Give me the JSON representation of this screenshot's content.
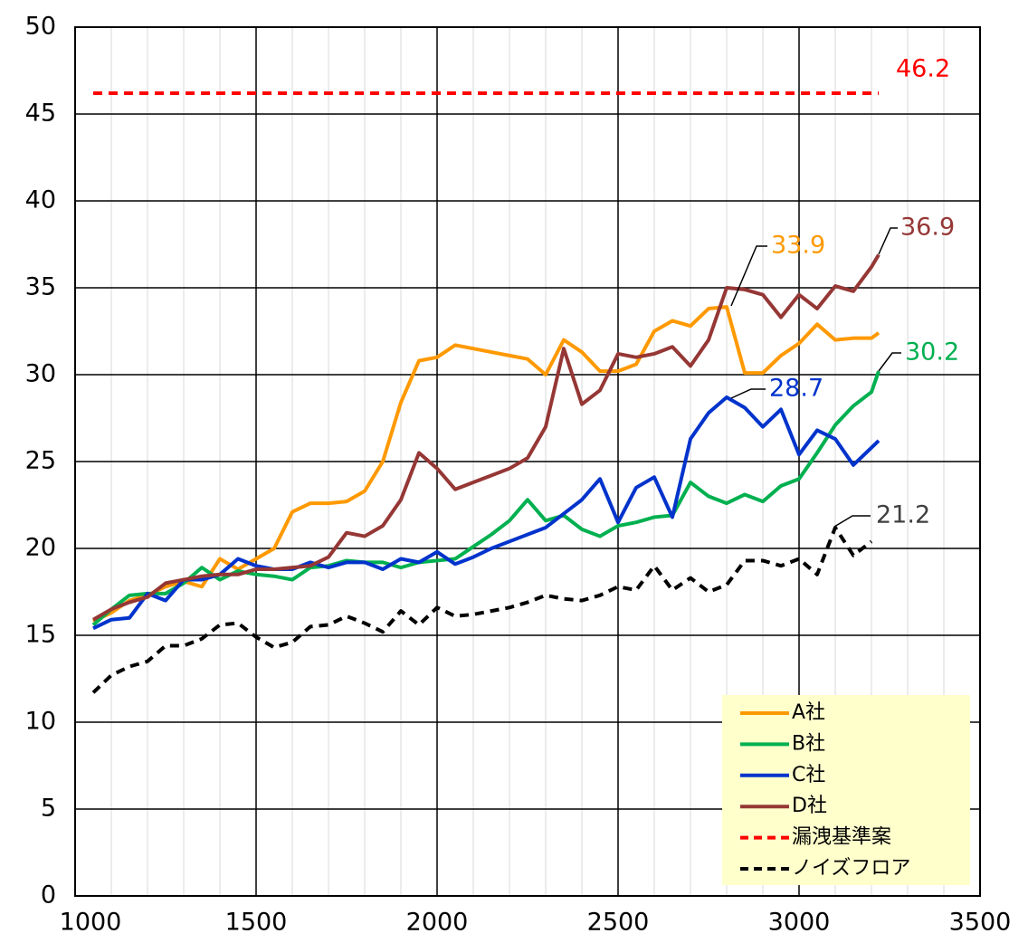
{
  "chart_data": {
    "type": "line",
    "x": [
      1050,
      1100,
      1150,
      1200,
      1250,
      1300,
      1350,
      1400,
      1450,
      1500,
      1550,
      1600,
      1650,
      1700,
      1750,
      1800,
      1850,
      1900,
      1950,
      2000,
      2050,
      2100,
      2150,
      2200,
      2250,
      2300,
      2350,
      2400,
      2450,
      2500,
      2550,
      2600,
      2650,
      2700,
      2750,
      2800,
      2850,
      2900,
      2950,
      3000,
      3050,
      3100,
      3150,
      3200,
      3220
    ],
    "series": [
      {
        "name": "A社",
        "color": "#ff9900",
        "line_style": "solid",
        "values": [
          15.8,
          16.3,
          17.0,
          17.3,
          17.8,
          18.1,
          17.8,
          19.4,
          18.8,
          19.4,
          20.0,
          22.1,
          22.6,
          22.6,
          22.7,
          23.3,
          25.0,
          28.4,
          30.8,
          31.0,
          31.7,
          31.5,
          31.3,
          31.1,
          30.9,
          30.0,
          32.0,
          31.3,
          30.2,
          30.2,
          30.6,
          32.5,
          33.1,
          32.8,
          33.8,
          33.9,
          30.1,
          30.1,
          31.1,
          31.8,
          32.9,
          32.0,
          32.1,
          32.1,
          32.4
        ]
      },
      {
        "name": "B社",
        "color": "#00b050",
        "line_style": "solid",
        "values": [
          15.6,
          16.5,
          17.3,
          17.4,
          17.4,
          18.0,
          18.9,
          18.2,
          18.7,
          18.5,
          18.4,
          18.2,
          18.9,
          19.0,
          19.3,
          19.2,
          19.2,
          18.9,
          19.2,
          19.3,
          19.4,
          20.1,
          20.8,
          21.6,
          22.8,
          21.6,
          21.9,
          21.1,
          20.7,
          21.3,
          21.5,
          21.8,
          21.9,
          23.8,
          23.0,
          22.6,
          23.1,
          22.7,
          23.6,
          24.0,
          25.5,
          27.1,
          28.2,
          29.0,
          30.2
        ]
      },
      {
        "name": "C社",
        "color": "#0033cc",
        "line_style": "solid",
        "values": [
          15.4,
          15.9,
          16.0,
          17.4,
          17.0,
          18.2,
          18.2,
          18.5,
          19.4,
          19.0,
          18.8,
          18.8,
          19.2,
          18.9,
          19.2,
          19.2,
          18.8,
          19.4,
          19.2,
          19.8,
          19.1,
          19.5,
          20.0,
          20.4,
          20.8,
          21.2,
          22.0,
          22.8,
          24.0,
          21.5,
          23.5,
          24.1,
          21.8,
          26.3,
          27.8,
          28.7,
          28.1,
          27.0,
          28.0,
          25.4,
          26.8,
          26.3,
          24.8,
          25.8,
          26.2
        ]
      },
      {
        "name": "D社",
        "color": "#953735",
        "line_style": "solid",
        "values": [
          15.9,
          16.5,
          16.9,
          17.2,
          18.0,
          18.2,
          18.4,
          18.5,
          18.5,
          18.8,
          18.8,
          18.9,
          19.0,
          19.5,
          20.9,
          20.7,
          21.3,
          22.8,
          25.5,
          24.6,
          23.4,
          23.8,
          24.2,
          24.6,
          25.2,
          27.0,
          31.5,
          28.3,
          29.1,
          31.2,
          31.0,
          31.2,
          31.6,
          30.5,
          32.0,
          35.0,
          34.9,
          34.6,
          33.3,
          34.6,
          33.8,
          35.1,
          34.8,
          36.2,
          36.9
        ]
      },
      {
        "name": "漏洩基準案",
        "color": "#ff0000",
        "line_style": "dashed",
        "values": [
          46.2,
          46.2,
          46.2,
          46.2,
          46.2,
          46.2,
          46.2,
          46.2,
          46.2,
          46.2,
          46.2,
          46.2,
          46.2,
          46.2,
          46.2,
          46.2,
          46.2,
          46.2,
          46.2,
          46.2,
          46.2,
          46.2,
          46.2,
          46.2,
          46.2,
          46.2,
          46.2,
          46.2,
          46.2,
          46.2,
          46.2,
          46.2,
          46.2,
          46.2,
          46.2,
          46.2,
          46.2,
          46.2,
          46.2,
          46.2,
          46.2,
          46.2,
          46.2,
          46.2,
          46.2
        ]
      },
      {
        "name": "ノイズフロア",
        "color": "#000000",
        "line_style": "dashed",
        "values": [
          11.7,
          12.7,
          13.2,
          13.5,
          14.4,
          14.4,
          14.8,
          15.6,
          15.7,
          14.9,
          14.3,
          14.6,
          15.5,
          15.6,
          16.1,
          15.7,
          15.2,
          16.4,
          15.6,
          16.6,
          16.1,
          16.2,
          16.4,
          16.6,
          16.9,
          17.3,
          17.1,
          17.0,
          17.3,
          17.8,
          17.6,
          19.0,
          17.6,
          18.3,
          17.5,
          17.9,
          19.3,
          19.3,
          19.0,
          19.4,
          18.5,
          21.2,
          19.6,
          20.4,
          null
        ]
      }
    ],
    "xlim": [
      1000,
      3500
    ],
    "xticks": [
      1000,
      1500,
      2000,
      2500,
      3000,
      3500
    ],
    "minor_xticks": [
      1100,
      1200,
      1300,
      1400,
      1600,
      1700,
      1800,
      1900,
      2100,
      2200,
      2300,
      2400,
      2600,
      2700,
      2800,
      2900,
      3100,
      3200,
      3300,
      3400
    ],
    "ylim": [
      0,
      50
    ],
    "yticks": [
      0,
      5,
      10,
      15,
      20,
      25,
      30,
      35,
      40,
      45,
      50
    ],
    "grid": true,
    "legend": "lower right"
  }
}
